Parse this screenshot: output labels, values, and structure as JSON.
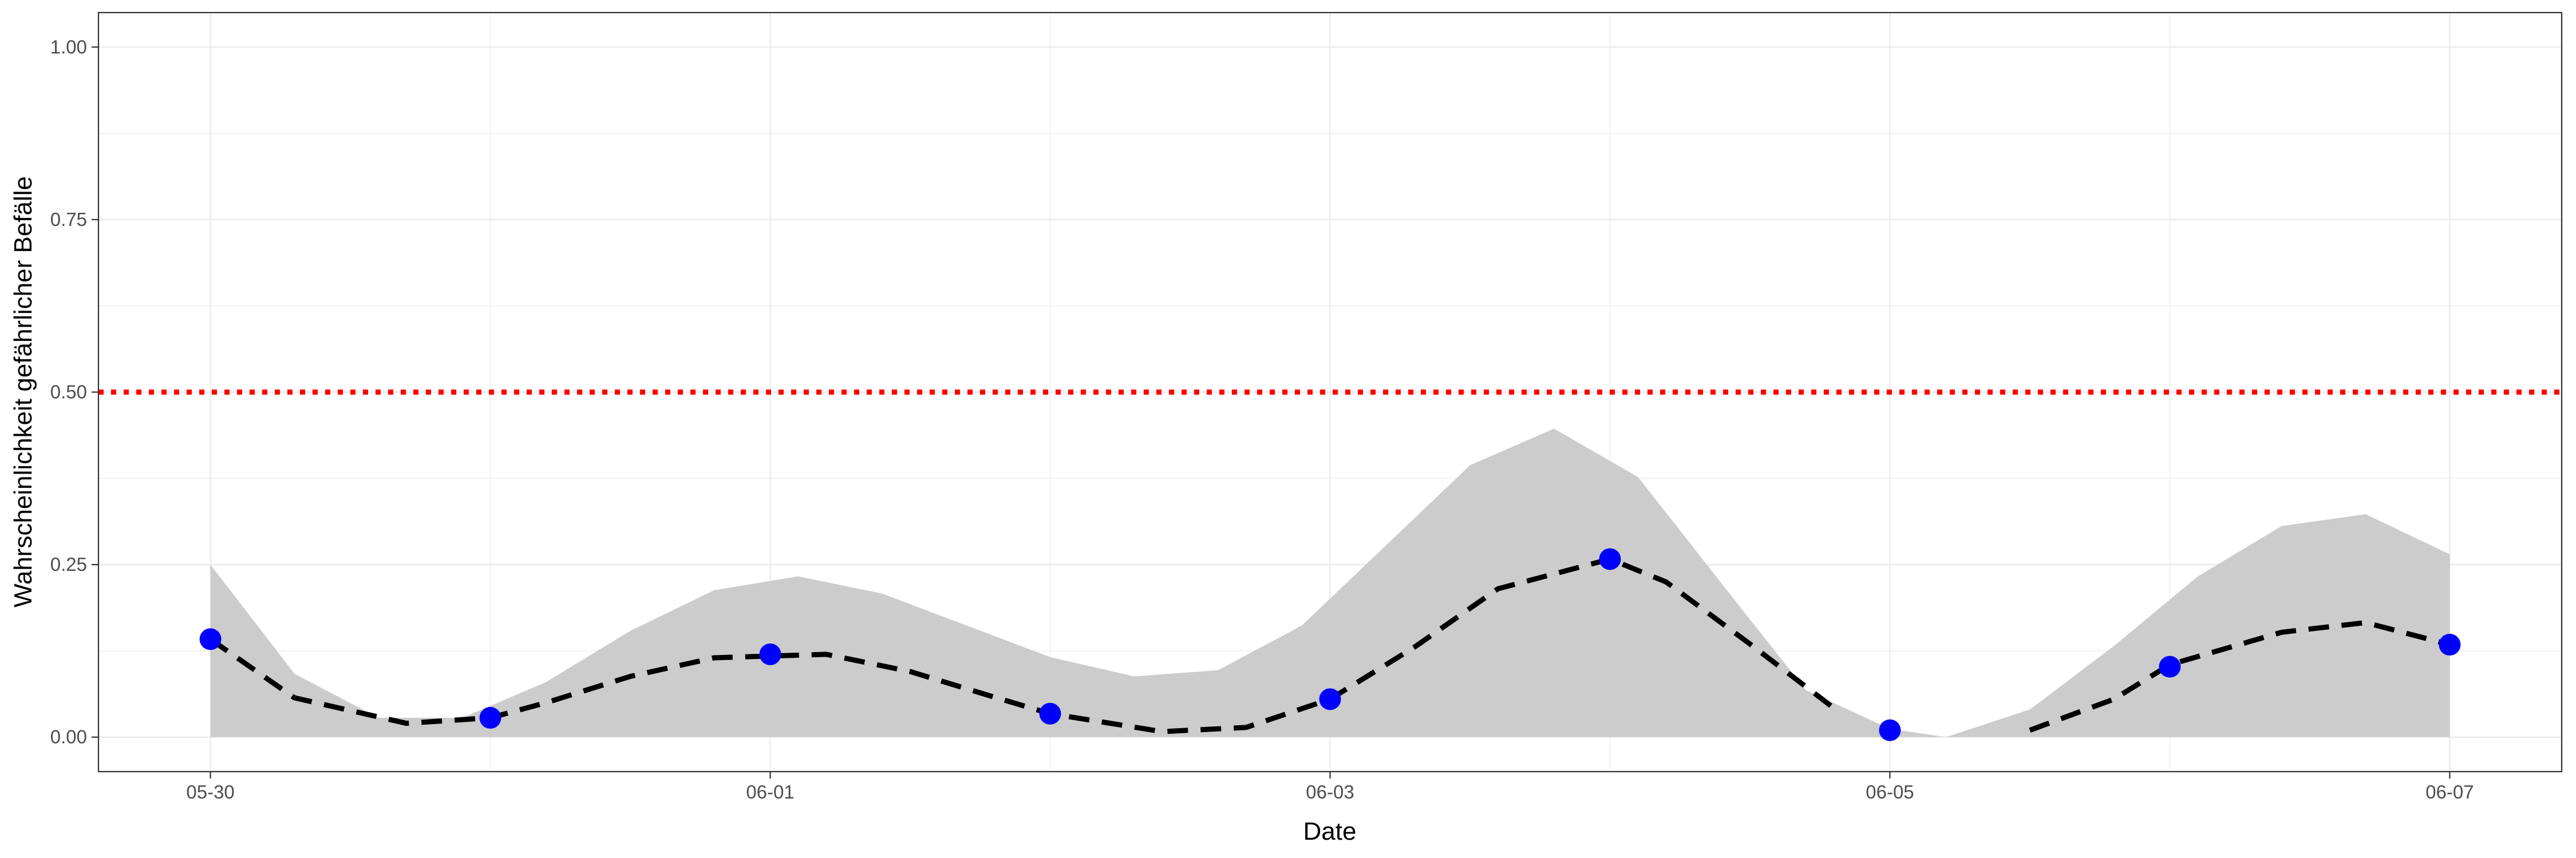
{
  "chart_data": {
    "type": "line",
    "xlabel": "Date",
    "ylabel": "Wahrscheinlichkeit gefährlicher Befälle",
    "x_range": [
      "05-29 14:24",
      "06-07 09:36"
    ],
    "ylim": [
      -0.05,
      1.05
    ],
    "x_ticks": [
      {
        "date": "05-30",
        "label": "05-30"
      },
      {
        "date": "06-01",
        "label": "06-01"
      },
      {
        "date": "06-03",
        "label": "06-03"
      },
      {
        "date": "06-05",
        "label": "06-05"
      },
      {
        "date": "06-07",
        "label": "06-07"
      }
    ],
    "y_ticks": [
      {
        "value": 0.0,
        "label": "0.00"
      },
      {
        "value": 0.25,
        "label": "0.25"
      },
      {
        "value": 0.5,
        "label": "0.50"
      },
      {
        "value": 0.75,
        "label": "0.75"
      },
      {
        "value": 1.0,
        "label": "1.00"
      }
    ],
    "grid": true,
    "threshold": {
      "value": 0.5,
      "color": "#ff0000",
      "style": "dotted"
    },
    "band": {
      "color": "#cccccc",
      "points": [
        {
          "x": "05-30 00:00",
          "upper": 0.25
        },
        {
          "x": "05-30 07:12",
          "upper": 0.092
        },
        {
          "x": "05-30 14:24",
          "upper": 0.028
        },
        {
          "x": "05-30 21:36",
          "upper": 0.028
        },
        {
          "x": "05-31 04:48",
          "upper": 0.08
        },
        {
          "x": "05-31 12:00",
          "upper": 0.154
        },
        {
          "x": "05-31 19:12",
          "upper": 0.213
        },
        {
          "x": "06-01 02:24",
          "upper": 0.233
        },
        {
          "x": "06-01 09:36",
          "upper": 0.208
        },
        {
          "x": "06-01 16:48",
          "upper": 0.162
        },
        {
          "x": "06-02 00:00",
          "upper": 0.116
        },
        {
          "x": "06-02 07:12",
          "upper": 0.088
        },
        {
          "x": "06-02 14:24",
          "upper": 0.097
        },
        {
          "x": "06-02 21:36",
          "upper": 0.162
        },
        {
          "x": "06-03 04:48",
          "upper": 0.278
        },
        {
          "x": "06-03 12:00",
          "upper": 0.394
        },
        {
          "x": "06-03 19:12",
          "upper": 0.447
        },
        {
          "x": "06-04 02:24",
          "upper": 0.377
        },
        {
          "x": "06-04 09:36",
          "upper": 0.222
        },
        {
          "x": "06-04 16:48",
          "upper": 0.068
        },
        {
          "x": "06-05 00:00",
          "upper": 0.012
        },
        {
          "x": "06-05 04:48",
          "upper": 0.0
        },
        {
          "x": "06-05 12:00",
          "upper": 0.04
        },
        {
          "x": "06-05 19:12",
          "upper": 0.132
        },
        {
          "x": "06-06 02:24",
          "upper": 0.233
        },
        {
          "x": "06-06 09:36",
          "upper": 0.306
        },
        {
          "x": "06-06 16:48",
          "upper": 0.323
        },
        {
          "x": "06-07 00:00",
          "upper": 0.265
        }
      ]
    },
    "series": [
      {
        "color": "#000000",
        "style": "dashed",
        "points": [
          {
            "x": "05-30 00:00",
            "y": 0.142
          },
          {
            "x": "05-30 07:12",
            "y": 0.057
          },
          {
            "x": "05-30 16:48",
            "y": 0.02
          },
          {
            "x": "05-31 00:00",
            "y": 0.028
          },
          {
            "x": "05-31 04:48",
            "y": 0.05
          },
          {
            "x": "05-31 12:00",
            "y": 0.088
          },
          {
            "x": "05-31 19:12",
            "y": 0.115
          },
          {
            "x": "06-01 04:48",
            "y": 0.12
          },
          {
            "x": "06-01 12:00",
            "y": 0.095
          },
          {
            "x": "06-01 19:12",
            "y": 0.058
          },
          {
            "x": "06-02 00:00",
            "y": 0.034
          },
          {
            "x": "06-02 09:36",
            "y": 0.008
          },
          {
            "x": "06-02 16:48",
            "y": 0.014
          },
          {
            "x": "06-03 00:00",
            "y": 0.055
          },
          {
            "x": "06-03 07:12",
            "y": 0.13
          },
          {
            "x": "06-03 14:24",
            "y": 0.215
          },
          {
            "x": "06-04 00:00",
            "y": 0.258
          },
          {
            "x": "06-04 04:48",
            "y": 0.225
          },
          {
            "x": "06-04 12:00",
            "y": 0.135
          },
          {
            "x": "06-04 19:12",
            "y": 0.042
          },
          {
            "x": "06-05 00:00",
            "y": null
          },
          {
            "x": "06-05 12:00",
            "y": 0.01
          },
          {
            "x": "06-05 19:12",
            "y": 0.055
          },
          {
            "x": "06-06 00:00",
            "y": 0.105
          },
          {
            "x": "06-06 09:36",
            "y": 0.152
          },
          {
            "x": "06-06 16:48",
            "y": 0.166
          },
          {
            "x": "06-07 00:00",
            "y": 0.134
          }
        ]
      },
      {
        "color": "#0000ff",
        "style": "points",
        "points": [
          {
            "x": "05-30 00:00",
            "y": 0.142
          },
          {
            "x": "05-31 00:00",
            "y": 0.028
          },
          {
            "x": "06-01 00:00",
            "y": 0.12
          },
          {
            "x": "06-02 00:00",
            "y": 0.034
          },
          {
            "x": "06-03 00:00",
            "y": 0.055
          },
          {
            "x": "06-04 00:00",
            "y": 0.258
          },
          {
            "x": "06-05 00:00",
            "y": 0.01
          },
          {
            "x": "06-06 00:00",
            "y": 0.102
          },
          {
            "x": "06-07 00:00",
            "y": 0.134
          }
        ]
      }
    ]
  }
}
